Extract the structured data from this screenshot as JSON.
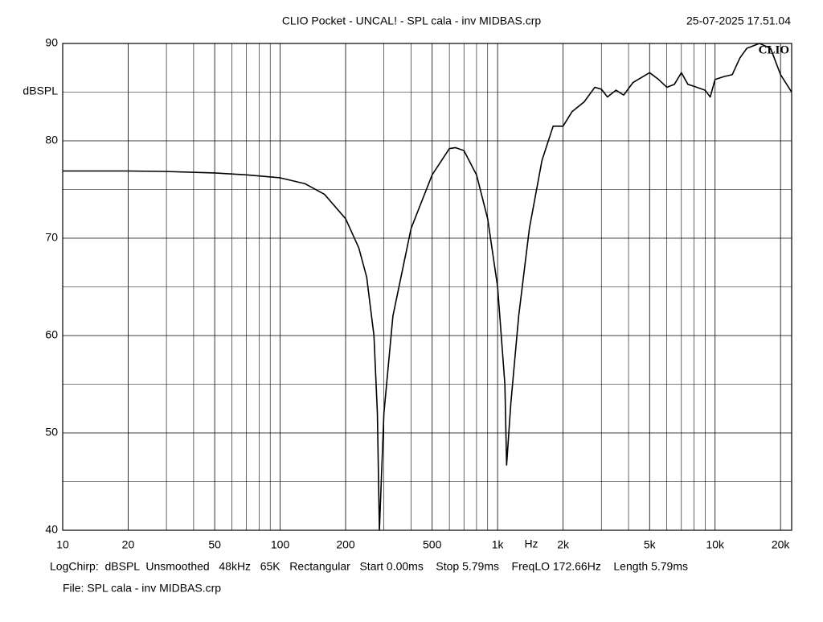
{
  "chart_data": {
    "type": "line",
    "title": "CLIO Pocket - UNCAL! - SPL cala - inv MIDBAS.crp",
    "timestamp": "25-07-2025 17.51.04",
    "logo": "CLIO",
    "x_label": "Hz",
    "y_label": "dBSPL",
    "footer": "LogChirp:  dBSPL  Unsmoothed   48kHz   65K   Rectangular   Start 0.00ms    Stop 5.79ms    FreqLO 172.66Hz    Length 5.79ms",
    "file": "File: SPL cala - inv MIDBAS.crp",
    "log_x": true,
    "grid": true,
    "color": "#000000",
    "xlim": [
      10,
      22500
    ],
    "ylim": [
      40,
      90
    ],
    "xticks": [
      10,
      20,
      50,
      100,
      200,
      500,
      {
        "value": 1000,
        "label": "1k"
      },
      {
        "value": 2000,
        "label": "2k"
      },
      {
        "value": 5000,
        "label": "5k"
      },
      {
        "value": 10000,
        "label": "10k"
      },
      {
        "value": 20000,
        "label": "20k"
      }
    ],
    "x_minor_grid": [
      30,
      40,
      60,
      70,
      80,
      90,
      300,
      400,
      600,
      700,
      800,
      900,
      3000,
      4000,
      6000,
      7000,
      8000,
      9000
    ],
    "yticks": [
      40,
      50,
      60,
      70,
      80,
      90
    ],
    "y_minor_grid": [
      45,
      55,
      65,
      75,
      85
    ],
    "x": [
      10,
      20,
      30,
      50,
      70,
      100,
      130,
      160,
      200,
      230,
      250,
      270,
      280,
      286,
      300,
      330,
      400,
      500,
      600,
      640,
      700,
      800,
      900,
      1000,
      1080,
      1100,
      1150,
      1250,
      1400,
      1600,
      1800,
      2000,
      2200,
      2500,
      2800,
      3000,
      3200,
      3500,
      3800,
      4200,
      5000,
      5500,
      6000,
      6500,
      7000,
      7500,
      8000,
      9000,
      9500,
      10000,
      11000,
      12000,
      13000,
      14000,
      16000,
      18000,
      20000,
      22500
    ],
    "values": [
      76.9,
      76.9,
      76.85,
      76.7,
      76.5,
      76.2,
      75.6,
      74.5,
      72.0,
      69.0,
      66.0,
      60.0,
      52.0,
      40.0,
      52.0,
      62.0,
      71.0,
      76.5,
      79.2,
      79.3,
      79.0,
      76.5,
      72.0,
      65.0,
      55.0,
      46.7,
      53.0,
      62.0,
      71.0,
      78.0,
      81.5,
      81.5,
      83.0,
      84.0,
      85.5,
      85.3,
      84.5,
      85.2,
      84.7,
      86.0,
      87.0,
      86.3,
      85.5,
      85.8,
      87.0,
      85.8,
      85.6,
      85.2,
      84.5,
      86.3,
      86.6,
      86.8,
      88.5,
      89.5,
      90.0,
      89.5,
      86.8,
      85.0
    ]
  }
}
